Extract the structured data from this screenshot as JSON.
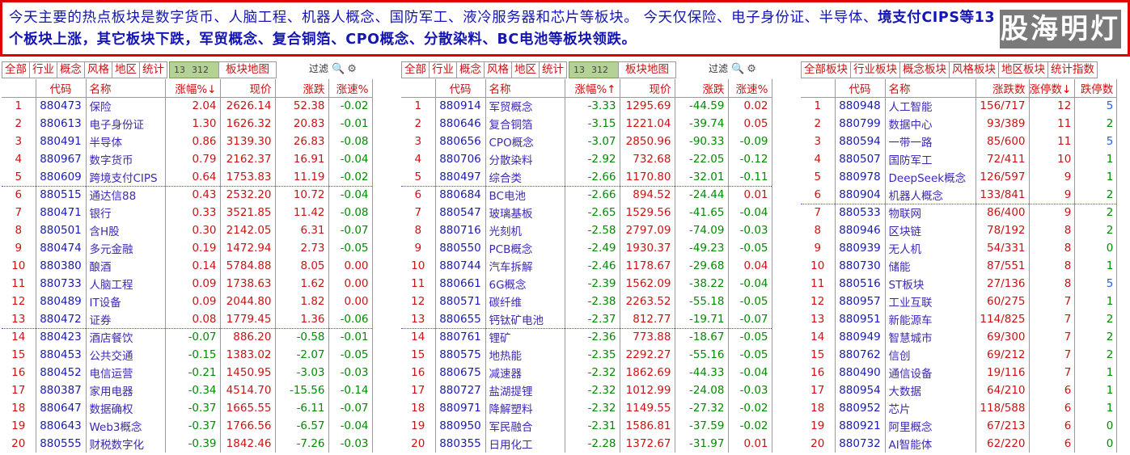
{
  "banner": {
    "line1": "今天主要的热点板块是数字货币、人脑工程、机器人概念、国防军工、液冷服务器和芯片等板块。   今天仅保险、电子身份证、半导体、",
    "line2": "境支付CIPS等13个板块上涨，其它板块下跌，军贸概念、复合铜箔、CPO概念、分散染料、BC电池等板块领跌。",
    "logo": "股海明灯"
  },
  "panel1": {
    "tabs": [
      "全部",
      "行业",
      "概念",
      "风格",
      "地区",
      "统计"
    ],
    "count_a": "13",
    "count_b": "312",
    "block_map": "板块地图",
    "filter": "过滤",
    "headers": [
      "",
      "代码",
      "名称",
      "涨幅%",
      "现价",
      "涨跌",
      "涨速%"
    ],
    "sort_indicator": "↓",
    "rows": [
      [
        "1",
        "880473",
        "保险",
        "2.04",
        "2626.14",
        "52.38",
        "-0.02"
      ],
      [
        "2",
        "880613",
        "电子身份证",
        "1.30",
        "1626.32",
        "20.83",
        "-0.01"
      ],
      [
        "3",
        "880491",
        "半导体",
        "0.86",
        "3139.30",
        "26.83",
        "-0.08"
      ],
      [
        "4",
        "880967",
        "数字货币",
        "0.79",
        "2162.37",
        "16.91",
        "-0.04"
      ],
      [
        "5",
        "880609",
        "跨境支付CIPS",
        "0.64",
        "1753.83",
        "11.19",
        "-0.02"
      ],
      [
        "6",
        "880515",
        "通达信88",
        "0.43",
        "2532.20",
        "10.72",
        "-0.04"
      ],
      [
        "7",
        "880471",
        "银行",
        "0.33",
        "3521.85",
        "11.42",
        "-0.08"
      ],
      [
        "8",
        "880501",
        "含H股",
        "0.30",
        "2142.05",
        "6.31",
        "-0.07"
      ],
      [
        "9",
        "880474",
        "多元金融",
        "0.19",
        "1472.94",
        "2.73",
        "-0.05"
      ],
      [
        "10",
        "880380",
        "酿酒",
        "0.14",
        "5784.88",
        "8.05",
        "0.00"
      ],
      [
        "11",
        "880733",
        "人脑工程",
        "0.09",
        "1738.63",
        "1.62",
        "0.00"
      ],
      [
        "12",
        "880489",
        "IT设备",
        "0.09",
        "2044.80",
        "1.82",
        "0.00"
      ],
      [
        "13",
        "880472",
        "证券",
        "0.08",
        "1779.45",
        "1.36",
        "-0.06"
      ],
      [
        "14",
        "880423",
        "酒店餐饮",
        "-0.07",
        "886.20",
        "-0.58",
        "-0.01"
      ],
      [
        "15",
        "880453",
        "公共交通",
        "-0.15",
        "1383.02",
        "-2.07",
        "-0.05"
      ],
      [
        "16",
        "880452",
        "电信运营",
        "-0.21",
        "1450.95",
        "-3.03",
        "-0.03"
      ],
      [
        "17",
        "880387",
        "家用电器",
        "-0.34",
        "4514.70",
        "-15.56",
        "-0.14"
      ],
      [
        "18",
        "880647",
        "数据确权",
        "-0.37",
        "1665.55",
        "-6.11",
        "-0.07"
      ],
      [
        "19",
        "880643",
        "Web3概念",
        "-0.37",
        "1766.56",
        "-6.57",
        "-0.04"
      ],
      [
        "20",
        "880555",
        "财税数字化",
        "-0.39",
        "1842.46",
        "-7.26",
        "-0.03"
      ]
    ]
  },
  "panel2": {
    "tabs": [
      "全部",
      "行业",
      "概念",
      "风格",
      "地区",
      "统计"
    ],
    "count_a": "13",
    "count_b": "312",
    "block_map": "板块地图",
    "filter": "过滤",
    "headers": [
      "",
      "代码",
      "名称",
      "涨幅%",
      "现价",
      "涨跌",
      "涨速%"
    ],
    "sort_indicator": "↑",
    "rows": [
      [
        "1",
        "880914",
        "军贸概念",
        "-3.33",
        "1295.69",
        "-44.59",
        "0.02"
      ],
      [
        "2",
        "880646",
        "复合铜箔",
        "-3.15",
        "1221.04",
        "-39.74",
        "0.05"
      ],
      [
        "3",
        "880656",
        "CPO概念",
        "-3.07",
        "2850.96",
        "-90.33",
        "-0.09"
      ],
      [
        "4",
        "880706",
        "分散染料",
        "-2.92",
        "732.68",
        "-22.05",
        "-0.12"
      ],
      [
        "5",
        "880497",
        "综合类",
        "-2.66",
        "1170.80",
        "-32.01",
        "-0.11"
      ],
      [
        "6",
        "880684",
        "BC电池",
        "-2.66",
        "894.52",
        "-24.44",
        "0.01"
      ],
      [
        "7",
        "880547",
        "玻璃基板",
        "-2.65",
        "1529.56",
        "-41.65",
        "-0.04"
      ],
      [
        "8",
        "880716",
        "光刻机",
        "-2.58",
        "2797.09",
        "-74.09",
        "-0.03"
      ],
      [
        "9",
        "880550",
        "PCB概念",
        "-2.49",
        "1930.37",
        "-49.23",
        "-0.05"
      ],
      [
        "10",
        "880744",
        "汽车拆解",
        "-2.46",
        "1178.67",
        "-29.68",
        "0.04"
      ],
      [
        "11",
        "880661",
        "6G概念",
        "-2.39",
        "1562.09",
        "-38.22",
        "-0.04"
      ],
      [
        "12",
        "880571",
        "碳纤维",
        "-2.38",
        "2263.52",
        "-55.18",
        "-0.05"
      ],
      [
        "13",
        "880655",
        "钙钛矿电池",
        "-2.37",
        "812.77",
        "-19.71",
        "-0.07"
      ],
      [
        "14",
        "880761",
        "锂矿",
        "-2.36",
        "773.88",
        "-18.67",
        "-0.05"
      ],
      [
        "15",
        "880575",
        "地热能",
        "-2.35",
        "2292.27",
        "-55.16",
        "-0.05"
      ],
      [
        "16",
        "880675",
        "减速器",
        "-2.32",
        "1862.69",
        "-44.33",
        "-0.04"
      ],
      [
        "17",
        "880727",
        "盐湖提锂",
        "-2.32",
        "1012.99",
        "-24.08",
        "-0.03"
      ],
      [
        "18",
        "880971",
        "降解塑料",
        "-2.32",
        "1149.55",
        "-27.32",
        "-0.02"
      ],
      [
        "19",
        "880950",
        "军民融合",
        "-2.31",
        "1586.81",
        "-37.59",
        "-0.02"
      ],
      [
        "20",
        "880355",
        "日用化工",
        "-2.28",
        "1372.67",
        "-31.97",
        "0.01"
      ]
    ]
  },
  "panel3": {
    "tabs": [
      "全部板块",
      "行业板块",
      "概念板块",
      "风格板块",
      "地区板块",
      "统计指数"
    ],
    "headers": [
      "",
      "代码",
      "名称",
      "涨跌数",
      "涨停数",
      "跌停数"
    ],
    "sort_indicator": "↓",
    "rows": [
      [
        "1",
        "880948",
        "人工智能",
        "156/717",
        "12",
        "5"
      ],
      [
        "2",
        "880799",
        "数据中心",
        "93/389",
        "11",
        "2"
      ],
      [
        "3",
        "880594",
        "一带一路",
        "85/600",
        "11",
        "5"
      ],
      [
        "4",
        "880507",
        "国防军工",
        "72/411",
        "10",
        "1"
      ],
      [
        "5",
        "880978",
        "DeepSeek概念",
        "126/597",
        "9",
        "1"
      ],
      [
        "6",
        "880904",
        "机器人概念",
        "133/841",
        "9",
        "2"
      ],
      [
        "7",
        "880533",
        "物联网",
        "86/400",
        "9",
        "2"
      ],
      [
        "8",
        "880946",
        "区块链",
        "78/192",
        "8",
        "2"
      ],
      [
        "9",
        "880939",
        "无人机",
        "54/331",
        "8",
        "0"
      ],
      [
        "10",
        "880730",
        "储能",
        "87/551",
        "8",
        "1"
      ],
      [
        "11",
        "880516",
        "ST板块",
        "27/136",
        "8",
        "5"
      ],
      [
        "12",
        "880957",
        "工业互联",
        "60/275",
        "7",
        "1"
      ],
      [
        "13",
        "880951",
        "新能源车",
        "114/825",
        "7",
        "2"
      ],
      [
        "14",
        "880949",
        "智慧城市",
        "69/300",
        "7",
        "2"
      ],
      [
        "15",
        "880762",
        "信创",
        "69/212",
        "7",
        "2"
      ],
      [
        "16",
        "880490",
        "通信设备",
        "19/116",
        "7",
        "1"
      ],
      [
        "17",
        "880954",
        "大数据",
        "64/210",
        "6",
        "1"
      ],
      [
        "18",
        "880952",
        "芯片",
        "118/588",
        "6",
        "1"
      ],
      [
        "19",
        "880921",
        "阿里概念",
        "67/213",
        "6",
        "0"
      ],
      [
        "20",
        "880732",
        "AI智能体",
        "62/220",
        "6",
        "0"
      ]
    ]
  },
  "colors": {
    "up": "#c81414",
    "down": "#008c00",
    "banner_border": "#e00000",
    "text_blue": "#1515b4"
  }
}
